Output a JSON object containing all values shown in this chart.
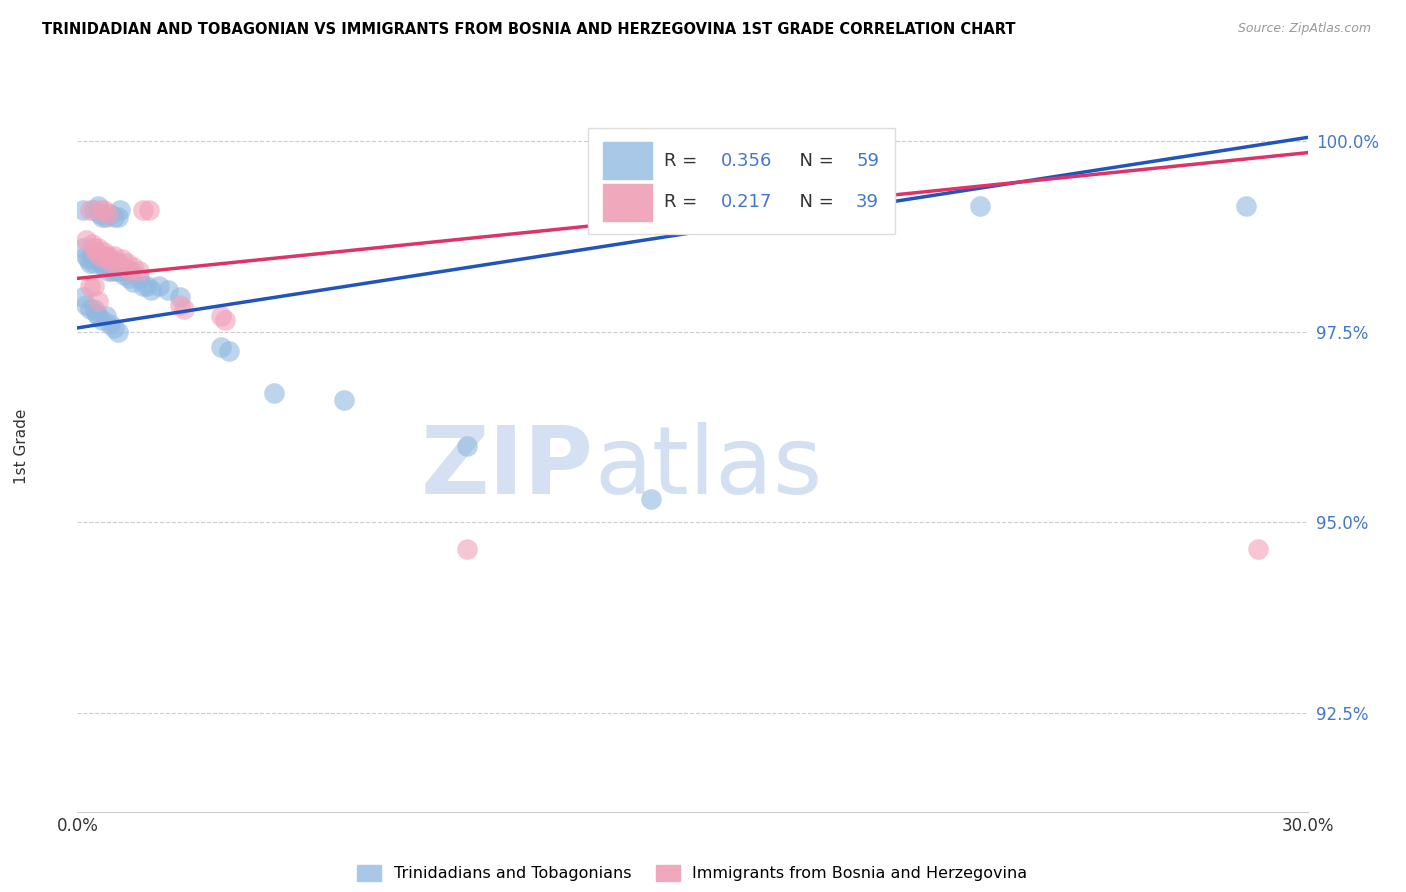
{
  "title": "TRINIDADIAN AND TOBAGONIAN VS IMMIGRANTS FROM BOSNIA AND HERZEGOVINA 1ST GRADE CORRELATION CHART",
  "source": "Source: ZipAtlas.com",
  "ylabel": "1st Grade",
  "x_min": 0.0,
  "x_max": 30.0,
  "y_min": 91.2,
  "y_max": 100.8,
  "yticks": [
    92.5,
    95.0,
    97.5,
    100.0
  ],
  "ytick_labels": [
    "92.5%",
    "95.0%",
    "97.5%",
    "100.0%"
  ],
  "blue_color": "#90b8e0",
  "pink_color": "#f0a0b8",
  "blue_line_color": "#2255bb",
  "pink_line_color": "#dd3366",
  "watermark_zip": "ZIP",
  "watermark_atlas": "atlas",
  "blue_scatter": [
    [
      0.15,
      99.1
    ],
    [
      0.4,
      99.1
    ],
    [
      0.5,
      99.15
    ],
    [
      0.55,
      99.05
    ],
    [
      0.6,
      99.0
    ],
    [
      0.7,
      99.0
    ],
    [
      0.8,
      99.05
    ],
    [
      0.9,
      99.0
    ],
    [
      1.0,
      99.0
    ],
    [
      1.05,
      99.1
    ],
    [
      0.15,
      98.6
    ],
    [
      0.2,
      98.5
    ],
    [
      0.25,
      98.45
    ],
    [
      0.3,
      98.4
    ],
    [
      0.35,
      98.5
    ],
    [
      0.4,
      98.4
    ],
    [
      0.5,
      98.5
    ],
    [
      0.55,
      98.4
    ],
    [
      0.6,
      98.4
    ],
    [
      0.65,
      98.35
    ],
    [
      0.7,
      98.5
    ],
    [
      0.75,
      98.3
    ],
    [
      0.8,
      98.4
    ],
    [
      0.85,
      98.3
    ],
    [
      0.9,
      98.35
    ],
    [
      0.95,
      98.3
    ],
    [
      1.0,
      98.4
    ],
    [
      1.05,
      98.3
    ],
    [
      1.1,
      98.35
    ],
    [
      1.15,
      98.25
    ],
    [
      1.2,
      98.3
    ],
    [
      1.25,
      98.2
    ],
    [
      1.3,
      98.3
    ],
    [
      1.35,
      98.15
    ],
    [
      1.5,
      98.2
    ],
    [
      1.6,
      98.1
    ],
    [
      1.7,
      98.1
    ],
    [
      1.8,
      98.05
    ],
    [
      2.0,
      98.1
    ],
    [
      2.2,
      98.05
    ],
    [
      2.5,
      97.95
    ],
    [
      0.15,
      97.95
    ],
    [
      0.2,
      97.85
    ],
    [
      0.3,
      97.8
    ],
    [
      0.4,
      97.8
    ],
    [
      0.45,
      97.75
    ],
    [
      0.5,
      97.7
    ],
    [
      0.6,
      97.65
    ],
    [
      0.7,
      97.7
    ],
    [
      0.8,
      97.6
    ],
    [
      0.9,
      97.55
    ],
    [
      1.0,
      97.5
    ],
    [
      3.5,
      97.3
    ],
    [
      3.7,
      97.25
    ],
    [
      4.8,
      96.7
    ],
    [
      6.5,
      96.6
    ],
    [
      9.5,
      96.0
    ],
    [
      14.0,
      95.3
    ],
    [
      22.0,
      99.15
    ],
    [
      28.5,
      99.15
    ]
  ],
  "pink_scatter": [
    [
      0.3,
      99.1
    ],
    [
      0.55,
      99.1
    ],
    [
      0.65,
      99.1
    ],
    [
      0.75,
      99.05
    ],
    [
      1.6,
      99.1
    ],
    [
      1.75,
      99.1
    ],
    [
      0.2,
      98.7
    ],
    [
      0.35,
      98.65
    ],
    [
      0.4,
      98.6
    ],
    [
      0.45,
      98.55
    ],
    [
      0.5,
      98.6
    ],
    [
      0.55,
      98.5
    ],
    [
      0.65,
      98.55
    ],
    [
      0.7,
      98.45
    ],
    [
      0.75,
      98.5
    ],
    [
      0.8,
      98.45
    ],
    [
      0.85,
      98.4
    ],
    [
      0.9,
      98.5
    ],
    [
      1.0,
      98.4
    ],
    [
      1.1,
      98.45
    ],
    [
      1.2,
      98.4
    ],
    [
      1.25,
      98.3
    ],
    [
      1.35,
      98.35
    ],
    [
      1.5,
      98.3
    ],
    [
      0.3,
      98.1
    ],
    [
      0.4,
      98.1
    ],
    [
      0.5,
      97.9
    ],
    [
      2.5,
      97.85
    ],
    [
      2.6,
      97.8
    ],
    [
      3.5,
      97.7
    ],
    [
      3.6,
      97.65
    ],
    [
      9.5,
      94.65
    ],
    [
      28.8,
      94.65
    ]
  ],
  "blue_line_x": [
    0.0,
    30.0
  ],
  "blue_line_y": [
    97.55,
    100.05
  ],
  "pink_line_x": [
    0.0,
    30.0
  ],
  "pink_line_y": [
    98.2,
    99.85
  ]
}
